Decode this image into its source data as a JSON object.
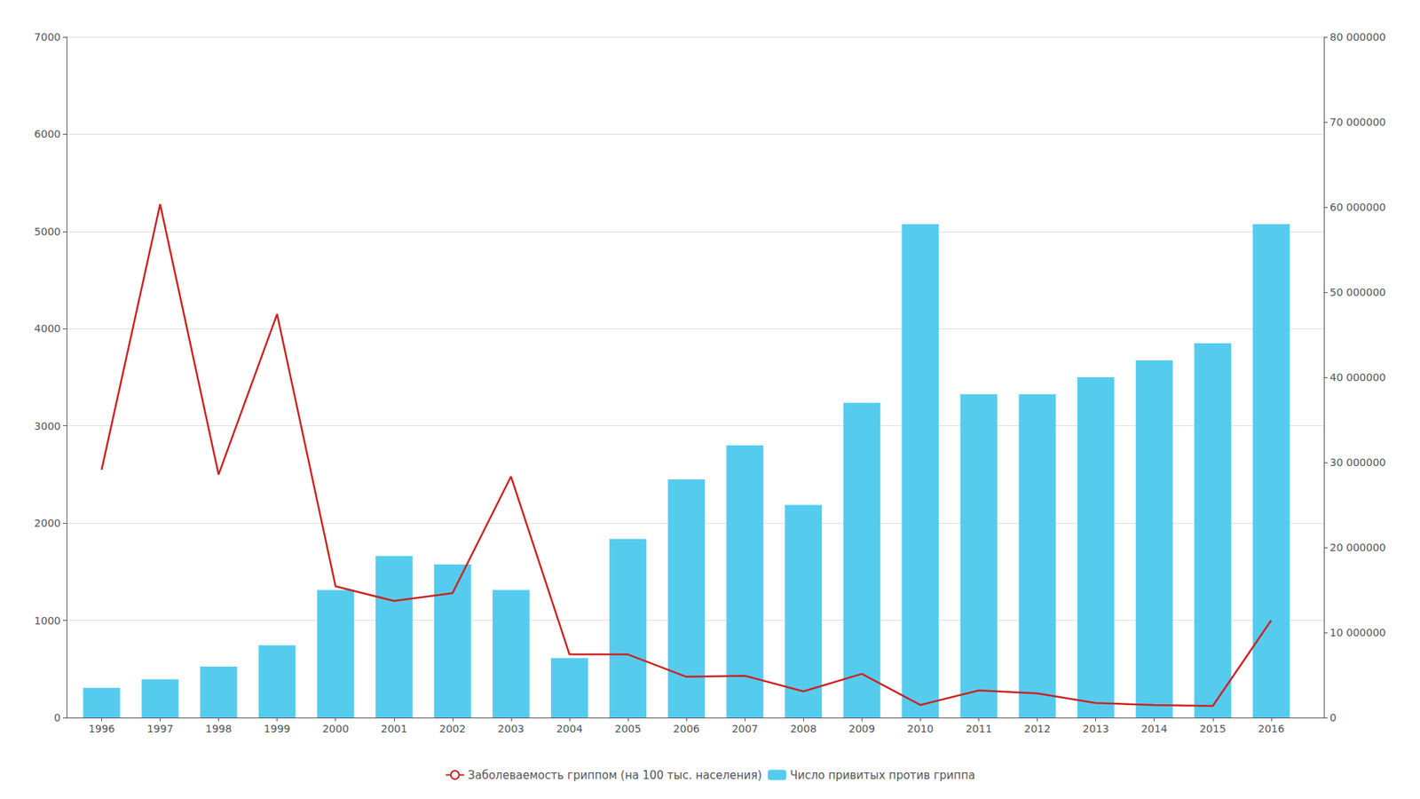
{
  "chart_data": {
    "type": "line",
    "x": [
      1996,
      1997,
      1998,
      1999,
      2000,
      2001,
      2002,
      2003,
      2004,
      2005,
      2006,
      2007,
      2008,
      2009,
      2010,
      2011,
      2012,
      2013,
      2014,
      2015,
      2016
    ],
    "xlim": [
      1995.4,
      2016.9
    ],
    "xticks": [
      1996,
      1997,
      1998,
      1999,
      2000,
      2001,
      2002,
      2003,
      2004,
      2005,
      2006,
      2007,
      2008,
      2009,
      2010,
      2011,
      2012,
      2013,
      2014,
      2015,
      2016
    ],
    "ylim": [
      0,
      7000
    ],
    "yticks": [
      0,
      1000,
      2000,
      3000,
      4000,
      5000,
      6000,
      7000
    ],
    "y2lim": [
      0,
      80000000
    ],
    "y2ticks": [
      0,
      {
        "value": 10000000,
        "label": "10 000000"
      },
      {
        "value": 20000000,
        "label": "20 000000"
      },
      {
        "value": 30000000,
        "label": "30 000000"
      },
      {
        "value": 40000000,
        "label": "40 000000"
      },
      {
        "value": 50000000,
        "label": "50 000000"
      },
      {
        "value": 60000000,
        "label": "60 000000"
      },
      {
        "value": 70000000,
        "label": "70 000000"
      },
      {
        "value": 80000000,
        "label": "80 000000"
      }
    ],
    "grid": true,
    "legend": "bottom",
    "series": [
      {
        "name": "Заболеваемость гриппом (на 100 тыс. населения)",
        "type": "line",
        "color": "#cc2222",
        "values": [
          2550,
          5280,
          2500,
          4150,
          1350,
          1200,
          1280,
          2480,
          650,
          650,
          420,
          430,
          270,
          450,
          130,
          280,
          250,
          150,
          130,
          120,
          1000
        ]
      },
      {
        "name": "Число привитых против гриппа",
        "type": "bar",
        "axis": "y2",
        "color": "#55ccee",
        "values": [
          3500000,
          4500000,
          6000000,
          8500000,
          15000000,
          19000000,
          18000000,
          15000000,
          7000000,
          21000000,
          28000000,
          32000000,
          25000000,
          37000000,
          58000000,
          38000000,
          38000000,
          40000000,
          42000000,
          44000000,
          58000000
        ]
      }
    ]
  }
}
